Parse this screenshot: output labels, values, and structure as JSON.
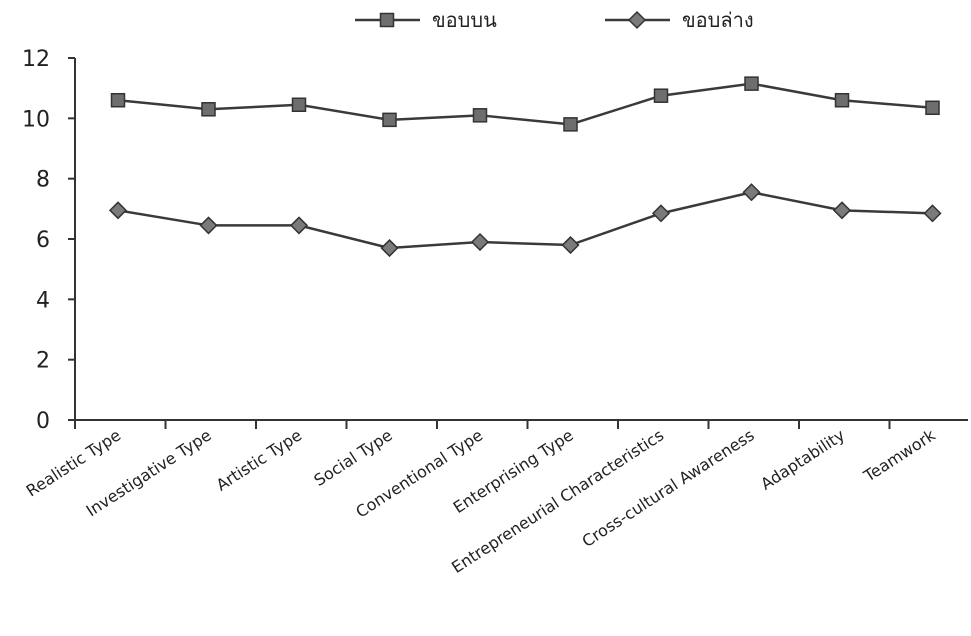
{
  "chart_data": {
    "type": "line",
    "title": "",
    "xlabel": "",
    "ylabel": "",
    "ylim": [
      0,
      12
    ],
    "yticks": [
      0,
      2,
      4,
      6,
      8,
      10,
      12
    ],
    "grid": false,
    "legend_position": "top",
    "categories": [
      "Realistic Type",
      "Investigative Type",
      "Artistic Type",
      "Social Type",
      "Conventional Type",
      "Enterprising Type",
      "Entrepreneurial Characteristics",
      "Cross-cultural Awareness",
      "Adaptability",
      "Teamwork"
    ],
    "series": [
      {
        "name": "ขอบบน",
        "marker": "square",
        "values": [
          10.6,
          10.3,
          10.45,
          9.95,
          10.1,
          9.8,
          10.75,
          11.15,
          10.6,
          10.35
        ]
      },
      {
        "name": "ขอบล่าง",
        "marker": "diamond",
        "values": [
          6.95,
          6.45,
          6.45,
          5.7,
          5.9,
          5.8,
          6.85,
          7.55,
          6.95,
          6.85
        ]
      }
    ],
    "colors": {
      "line": "#3a3a3a",
      "marker_fill": "#6e6e6e",
      "axis": "#333333"
    }
  }
}
